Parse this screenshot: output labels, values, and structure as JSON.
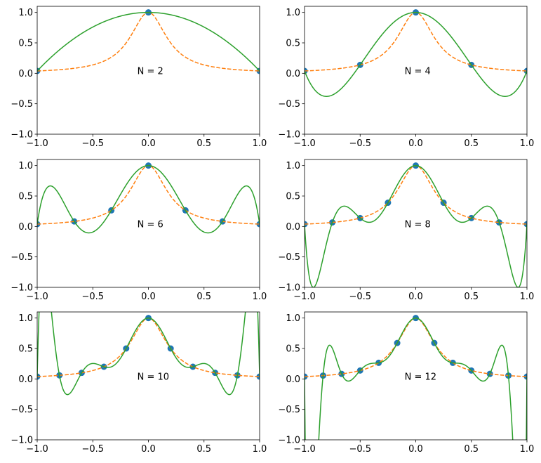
{
  "chart_data": {
    "type": "line",
    "layout": "3x2 grid",
    "xlim": [
      -1,
      1
    ],
    "ylim": [
      -1,
      1.1
    ],
    "x_ticks": [
      -1,
      -0.5,
      0,
      0.5,
      1
    ],
    "x_tick_labels": [
      "−1.0",
      "−0.5",
      "0.0",
      "0.5",
      "1.0"
    ],
    "y_ticks": [
      -1,
      -0.5,
      0,
      0.5,
      1
    ],
    "y_tick_labels": [
      "−1.0",
      "−0.5",
      "0.0",
      "0.5",
      "1.0"
    ],
    "grid": false,
    "colors": {
      "nodes": "#1f77b4",
      "true_function": "#ff7f0e",
      "interpolant": "#2ca02c"
    },
    "series_styles": {
      "nodes": "scatter points",
      "true_function": "dashed line",
      "interpolant": "solid line"
    },
    "subplots": [
      {
        "N": 2,
        "label": "N = 2"
      },
      {
        "N": 4,
        "label": "N = 4"
      },
      {
        "N": 6,
        "label": "N = 6"
      },
      {
        "N": 8,
        "label": "N = 8"
      },
      {
        "N": 10,
        "label": "N = 10"
      },
      {
        "N": 12,
        "label": "N = 12"
      }
    ]
  }
}
